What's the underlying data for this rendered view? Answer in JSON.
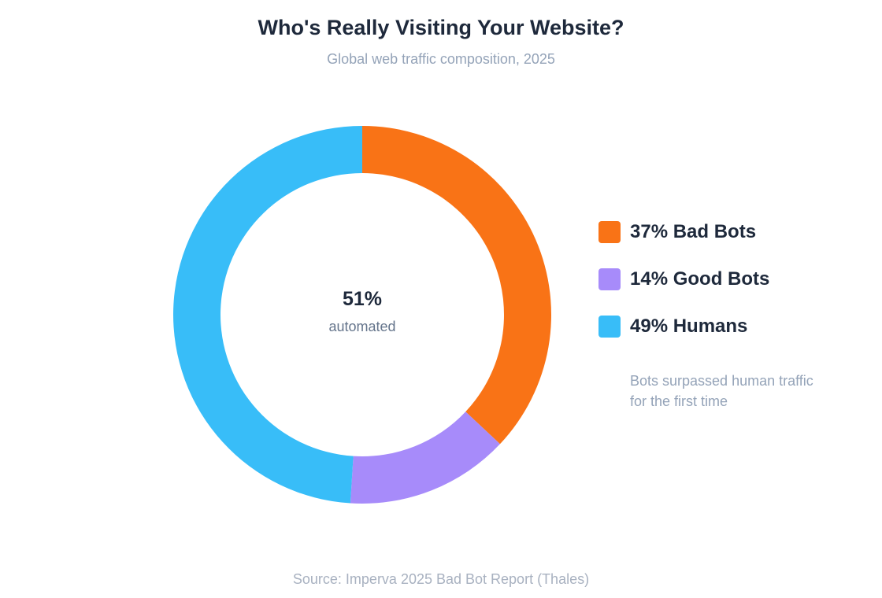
{
  "title": "Who's Really Visiting Your Website?",
  "subtitle": "Global web traffic composition, 2025",
  "center": {
    "value": "51%",
    "label": "automated"
  },
  "legend": [
    {
      "label": "37% Bad Bots",
      "color": "#f97316"
    },
    {
      "label": "14% Good Bots",
      "color": "#a78bfa"
    },
    {
      "label": "49% Humans",
      "color": "#38bdf8"
    }
  ],
  "note": "Bots surpassed human traffic for the first time",
  "source": "Source: Imperva 2025 Bad Bot Report (Thales)",
  "chart_data": {
    "type": "pie",
    "title": "Who's Really Visiting Your Website?",
    "subtitle": "Global web traffic composition, 2025",
    "categories": [
      "Bad Bots",
      "Good Bots",
      "Humans"
    ],
    "values": [
      37,
      14,
      49
    ],
    "unit": "%",
    "colors": [
      "#f97316",
      "#a78bfa",
      "#38bdf8"
    ],
    "legend_position": "right",
    "center_annotation": {
      "value": "51%",
      "label": "automated"
    }
  }
}
